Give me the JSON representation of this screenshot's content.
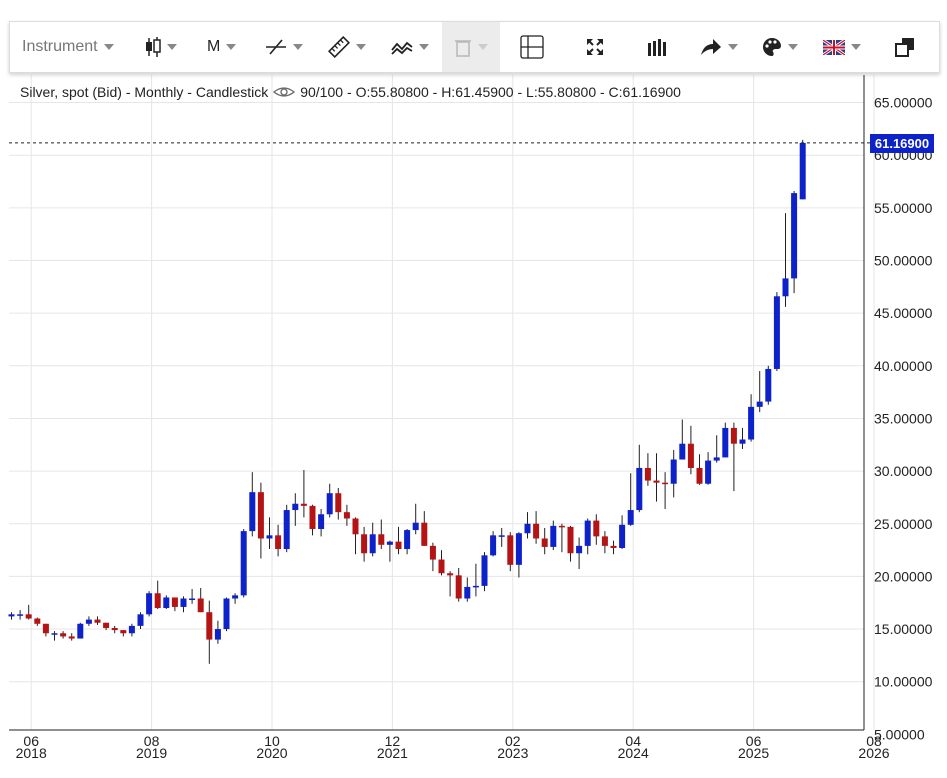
{
  "toolbar": {
    "instrument_label": "Instrument",
    "period_label": "M",
    "items": [
      {
        "name": "instrument-dropdown",
        "label": "Instrument"
      },
      {
        "name": "chart-type-candlestick-icon"
      },
      {
        "name": "period-dropdown",
        "label": "M"
      },
      {
        "name": "draw-line-icon"
      },
      {
        "name": "ruler-icon"
      },
      {
        "name": "indicators-icon"
      },
      {
        "name": "trash-icon",
        "disabled": true
      },
      {
        "name": "crosshair-icon"
      },
      {
        "name": "fullscreen-icon"
      },
      {
        "name": "volume-bars-icon"
      },
      {
        "name": "share-arrow-icon"
      },
      {
        "name": "palette-icon"
      },
      {
        "name": "language-flag-icon"
      },
      {
        "name": "popout-window-icon"
      }
    ]
  },
  "header": {
    "instrument": "Silver, spot (Bid) - Monthly - Candlestick",
    "quality": "90/100",
    "ohlc": "- O:55.80800 - H:61.45900 - L:55.80800 - C:61.16900"
  },
  "last_price_label": "61.16900",
  "colors": {
    "up": "#0d22c9",
    "down": "#b51414",
    "wick": "#222222",
    "grid": "#e6e6e6"
  },
  "chart_data": {
    "type": "candlestick",
    "title": "Silver, spot (Bid) - Monthly - Candlestick",
    "ylim": [
      5,
      67
    ],
    "y_ticks": [
      "65.00000",
      "60.00000",
      "55.00000",
      "50.00000",
      "45.00000",
      "40.00000",
      "35.00000",
      "30.00000",
      "25.00000",
      "20.00000",
      "15.00000",
      "10.00000",
      "5.00000"
    ],
    "y_tick_values": [
      65,
      60,
      55,
      50,
      45,
      40,
      35,
      30,
      25,
      20,
      15,
      10,
      5
    ],
    "x_ticks": [
      {
        "month": "06",
        "year": "2018",
        "index": 2
      },
      {
        "month": "08",
        "year": "2019",
        "index": 16
      },
      {
        "month": "10",
        "year": "2020",
        "index": 30
      },
      {
        "month": "12",
        "year": "2021",
        "index": 44
      },
      {
        "month": "02",
        "year": "2023",
        "index": 58
      },
      {
        "month": "04",
        "year": "2024",
        "index": 72
      },
      {
        "month": "06",
        "year": "2025",
        "index": 86
      },
      {
        "month": "08",
        "year": "2026",
        "index": 100
      }
    ],
    "last_close": 61.169,
    "candles": [
      {
        "date": "2018-04",
        "o": 16.2,
        "h": 16.6,
        "l": 15.9,
        "c": 16.4
      },
      {
        "date": "2018-05",
        "o": 16.4,
        "h": 16.8,
        "l": 15.9,
        "c": 16.4
      },
      {
        "date": "2018-06",
        "o": 16.4,
        "h": 17.3,
        "l": 15.9,
        "c": 16.0
      },
      {
        "date": "2018-07",
        "o": 16.0,
        "h": 16.1,
        "l": 15.3,
        "c": 15.5
      },
      {
        "date": "2018-08",
        "o": 15.5,
        "h": 15.5,
        "l": 14.3,
        "c": 14.6
      },
      {
        "date": "2018-09",
        "o": 14.6,
        "h": 14.8,
        "l": 13.9,
        "c": 14.6
      },
      {
        "date": "2018-10",
        "o": 14.6,
        "h": 14.8,
        "l": 14.1,
        "c": 14.3
      },
      {
        "date": "2018-11",
        "o": 14.3,
        "h": 14.6,
        "l": 13.9,
        "c": 14.1
      },
      {
        "date": "2018-12",
        "o": 14.1,
        "h": 15.6,
        "l": 14.1,
        "c": 15.5
      },
      {
        "date": "2019-01",
        "o": 15.5,
        "h": 16.2,
        "l": 15.3,
        "c": 15.9
      },
      {
        "date": "2019-02",
        "o": 15.9,
        "h": 16.2,
        "l": 15.4,
        "c": 15.6
      },
      {
        "date": "2019-03",
        "o": 15.6,
        "h": 15.6,
        "l": 14.9,
        "c": 15.1
      },
      {
        "date": "2019-04",
        "o": 15.1,
        "h": 15.3,
        "l": 14.6,
        "c": 14.9
      },
      {
        "date": "2019-05",
        "o": 14.9,
        "h": 14.9,
        "l": 14.3,
        "c": 14.6
      },
      {
        "date": "2019-06",
        "o": 14.6,
        "h": 15.5,
        "l": 14.3,
        "c": 15.3
      },
      {
        "date": "2019-07",
        "o": 15.3,
        "h": 16.6,
        "l": 15.0,
        "c": 16.4
      },
      {
        "date": "2019-08",
        "o": 16.4,
        "h": 18.6,
        "l": 16.2,
        "c": 18.4
      },
      {
        "date": "2019-09",
        "o": 18.4,
        "h": 19.6,
        "l": 16.9,
        "c": 17.0
      },
      {
        "date": "2019-10",
        "o": 17.0,
        "h": 18.2,
        "l": 16.9,
        "c": 18.0
      },
      {
        "date": "2019-11",
        "o": 18.0,
        "h": 18.0,
        "l": 16.7,
        "c": 17.1
      },
      {
        "date": "2019-12",
        "o": 17.1,
        "h": 18.1,
        "l": 16.6,
        "c": 17.9
      },
      {
        "date": "2020-01",
        "o": 17.9,
        "h": 18.8,
        "l": 17.4,
        "c": 17.9
      },
      {
        "date": "2020-02",
        "o": 17.9,
        "h": 18.9,
        "l": 16.6,
        "c": 16.6
      },
      {
        "date": "2020-03",
        "o": 16.6,
        "h": 17.7,
        "l": 11.7,
        "c": 14.0
      },
      {
        "date": "2020-04",
        "o": 14.0,
        "h": 15.8,
        "l": 13.6,
        "c": 15.0
      },
      {
        "date": "2020-05",
        "o": 15.0,
        "h": 18.0,
        "l": 14.8,
        "c": 17.9
      },
      {
        "date": "2020-06",
        "o": 17.9,
        "h": 18.4,
        "l": 17.4,
        "c": 18.2
      },
      {
        "date": "2020-07",
        "o": 18.2,
        "h": 24.5,
        "l": 18.0,
        "c": 24.3
      },
      {
        "date": "2020-08",
        "o": 24.3,
        "h": 29.9,
        "l": 23.8,
        "c": 28.0
      },
      {
        "date": "2020-09",
        "o": 28.0,
        "h": 28.9,
        "l": 21.7,
        "c": 23.6
      },
      {
        "date": "2020-10",
        "o": 23.6,
        "h": 25.6,
        "l": 22.6,
        "c": 23.9
      },
      {
        "date": "2020-11",
        "o": 23.9,
        "h": 24.9,
        "l": 21.9,
        "c": 22.6
      },
      {
        "date": "2020-12",
        "o": 22.6,
        "h": 26.8,
        "l": 22.3,
        "c": 26.3
      },
      {
        "date": "2021-01",
        "o": 26.3,
        "h": 27.9,
        "l": 24.8,
        "c": 26.9
      },
      {
        "date": "2021-02",
        "o": 26.9,
        "h": 30.1,
        "l": 25.6,
        "c": 26.7
      },
      {
        "date": "2021-03",
        "o": 26.7,
        "h": 26.8,
        "l": 23.9,
        "c": 24.5
      },
      {
        "date": "2021-04",
        "o": 24.5,
        "h": 26.4,
        "l": 23.8,
        "c": 25.9
      },
      {
        "date": "2021-05",
        "o": 25.9,
        "h": 28.8,
        "l": 25.6,
        "c": 27.9
      },
      {
        "date": "2021-06",
        "o": 27.9,
        "h": 28.4,
        "l": 25.4,
        "c": 26.1
      },
      {
        "date": "2021-07",
        "o": 26.1,
        "h": 26.8,
        "l": 24.8,
        "c": 25.5
      },
      {
        "date": "2021-08",
        "o": 25.5,
        "h": 25.6,
        "l": 22.1,
        "c": 24.0
      },
      {
        "date": "2021-09",
        "o": 24.0,
        "h": 24.7,
        "l": 21.4,
        "c": 22.2
      },
      {
        "date": "2021-10",
        "o": 22.2,
        "h": 25.1,
        "l": 21.9,
        "c": 24.0
      },
      {
        "date": "2021-11",
        "o": 24.0,
        "h": 25.4,
        "l": 22.6,
        "c": 23.0
      },
      {
        "date": "2021-12",
        "o": 23.0,
        "h": 23.4,
        "l": 21.4,
        "c": 23.3
      },
      {
        "date": "2022-01",
        "o": 23.3,
        "h": 24.7,
        "l": 22.1,
        "c": 22.6
      },
      {
        "date": "2022-02",
        "o": 22.6,
        "h": 24.5,
        "l": 22.1,
        "c": 24.4
      },
      {
        "date": "2022-03",
        "o": 24.4,
        "h": 26.9,
        "l": 24.0,
        "c": 25.1
      },
      {
        "date": "2022-04",
        "o": 25.1,
        "h": 26.2,
        "l": 22.9,
        "c": 22.9
      },
      {
        "date": "2022-05",
        "o": 22.9,
        "h": 23.2,
        "l": 20.5,
        "c": 21.6
      },
      {
        "date": "2022-06",
        "o": 21.6,
        "h": 22.5,
        "l": 20.1,
        "c": 20.3
      },
      {
        "date": "2022-07",
        "o": 20.3,
        "h": 20.5,
        "l": 18.1,
        "c": 20.1
      },
      {
        "date": "2022-08",
        "o": 20.1,
        "h": 20.8,
        "l": 17.6,
        "c": 17.9
      },
      {
        "date": "2022-09",
        "o": 17.9,
        "h": 19.9,
        "l": 17.6,
        "c": 19.0
      },
      {
        "date": "2022-10",
        "o": 19.0,
        "h": 21.2,
        "l": 18.1,
        "c": 19.1
      },
      {
        "date": "2022-11",
        "o": 19.1,
        "h": 22.3,
        "l": 18.6,
        "c": 22.0
      },
      {
        "date": "2022-12",
        "o": 22.0,
        "h": 24.3,
        "l": 21.9,
        "c": 23.9
      },
      {
        "date": "2023-01",
        "o": 23.9,
        "h": 24.6,
        "l": 22.8,
        "c": 23.9
      },
      {
        "date": "2023-02",
        "o": 23.9,
        "h": 24.2,
        "l": 20.5,
        "c": 21.1
      },
      {
        "date": "2023-03",
        "o": 21.1,
        "h": 24.2,
        "l": 19.9,
        "c": 24.1
      },
      {
        "date": "2023-04",
        "o": 24.1,
        "h": 26.1,
        "l": 23.6,
        "c": 25.0
      },
      {
        "date": "2023-05",
        "o": 25.0,
        "h": 26.2,
        "l": 23.1,
        "c": 23.6
      },
      {
        "date": "2023-06",
        "o": 23.6,
        "h": 24.6,
        "l": 22.1,
        "c": 22.8
      },
      {
        "date": "2023-07",
        "o": 22.8,
        "h": 25.3,
        "l": 22.5,
        "c": 24.8
      },
      {
        "date": "2023-08",
        "o": 24.8,
        "h": 25.0,
        "l": 22.3,
        "c": 24.7
      },
      {
        "date": "2023-09",
        "o": 24.7,
        "h": 24.8,
        "l": 21.4,
        "c": 22.2
      },
      {
        "date": "2023-10",
        "o": 22.2,
        "h": 23.7,
        "l": 20.7,
        "c": 22.9
      },
      {
        "date": "2023-11",
        "o": 22.9,
        "h": 25.5,
        "l": 22.1,
        "c": 25.3
      },
      {
        "date": "2023-12",
        "o": 25.3,
        "h": 25.9,
        "l": 23.0,
        "c": 23.8
      },
      {
        "date": "2024-01",
        "o": 23.8,
        "h": 24.3,
        "l": 22.2,
        "c": 22.9
      },
      {
        "date": "2024-02",
        "o": 22.9,
        "h": 23.4,
        "l": 22.1,
        "c": 22.7
      },
      {
        "date": "2024-03",
        "o": 22.7,
        "h": 25.8,
        "l": 22.6,
        "c": 24.9
      },
      {
        "date": "2024-04",
        "o": 24.9,
        "h": 29.8,
        "l": 24.8,
        "c": 26.3
      },
      {
        "date": "2024-05",
        "o": 26.3,
        "h": 32.5,
        "l": 26.1,
        "c": 30.3
      },
      {
        "date": "2024-06",
        "o": 30.3,
        "h": 31.7,
        "l": 28.6,
        "c": 29.1
      },
      {
        "date": "2024-07",
        "o": 29.1,
        "h": 31.7,
        "l": 27.1,
        "c": 28.9
      },
      {
        "date": "2024-08",
        "o": 28.9,
        "h": 29.9,
        "l": 26.4,
        "c": 28.8
      },
      {
        "date": "2024-09",
        "o": 28.8,
        "h": 32.0,
        "l": 27.5,
        "c": 31.1
      },
      {
        "date": "2024-10",
        "o": 31.1,
        "h": 34.9,
        "l": 31.1,
        "c": 32.6
      },
      {
        "date": "2024-11",
        "o": 32.6,
        "h": 34.3,
        "l": 29.7,
        "c": 30.3
      },
      {
        "date": "2024-12",
        "o": 30.3,
        "h": 31.6,
        "l": 28.7,
        "c": 28.8
      },
      {
        "date": "2025-01",
        "o": 28.8,
        "h": 31.8,
        "l": 28.7,
        "c": 31.0
      },
      {
        "date": "2025-02",
        "o": 31.0,
        "h": 33.4,
        "l": 30.8,
        "c": 31.3
      },
      {
        "date": "2025-03",
        "o": 31.3,
        "h": 34.6,
        "l": 31.3,
        "c": 34.1
      },
      {
        "date": "2025-04",
        "o": 34.1,
        "h": 34.6,
        "l": 28.1,
        "c": 32.6
      },
      {
        "date": "2025-05",
        "o": 32.6,
        "h": 34.1,
        "l": 32.1,
        "c": 33.0
      },
      {
        "date": "2025-06",
        "o": 33.0,
        "h": 37.3,
        "l": 32.8,
        "c": 36.1
      },
      {
        "date": "2025-07",
        "o": 36.1,
        "h": 39.5,
        "l": 35.6,
        "c": 36.6
      },
      {
        "date": "2025-08",
        "o": 36.6,
        "h": 40.0,
        "l": 36.3,
        "c": 39.7
      },
      {
        "date": "2025-09",
        "o": 39.7,
        "h": 47.0,
        "l": 39.5,
        "c": 46.6
      },
      {
        "date": "2025-10",
        "o": 46.6,
        "h": 54.5,
        "l": 45.6,
        "c": 48.3
      },
      {
        "date": "2025-11",
        "o": 48.3,
        "h": 56.6,
        "l": 46.9,
        "c": 56.4
      },
      {
        "date": "2025-12",
        "o": 55.808,
        "h": 61.459,
        "l": 55.808,
        "c": 61.169
      }
    ]
  }
}
